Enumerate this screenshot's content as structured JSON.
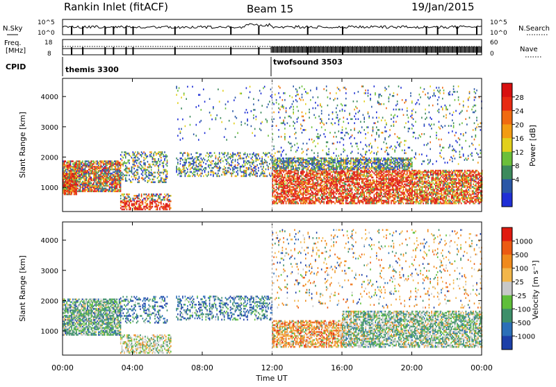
{
  "header": {
    "station": "Rankin Inlet (fitACF)",
    "beam": "Beam 15",
    "date": "19/Jan/2015"
  },
  "top_panels": {
    "nsky_label": "N.Sky",
    "nsearch_label": "N.Search",
    "noise_ticks": [
      "10^5",
      "10^0"
    ],
    "freq_label_1": "Freq.",
    "freq_label_2": "[MHz]",
    "freq_ticks": [
      "18",
      "8"
    ],
    "nave_label": "Nave",
    "nave_ticks": [
      "60",
      "0"
    ],
    "cpid_label": "CPID",
    "cpid_segments": [
      "themis 3300",
      "twofsound 3503"
    ]
  },
  "chart_data": [
    {
      "type": "heatmap",
      "name": "power",
      "xlabel": "",
      "ylabel": "Slant Range [km]",
      "x_ticks": [
        "00:00",
        "04:00",
        "08:00",
        "12:00",
        "16:00",
        "20:00",
        "00:00"
      ],
      "x_range_hours": [
        0,
        24
      ],
      "y_ticks": [
        1000,
        2000,
        3000,
        4000
      ],
      "y_range": [
        200,
        4600
      ],
      "colorbar_label": "Power [dB]",
      "colorbar_ticks": [
        "4",
        "8",
        "12",
        "16",
        "20",
        "24",
        "28"
      ],
      "colorbar_colors": [
        "#1f2fd6",
        "#2a57a6",
        "#3c8a5c",
        "#6bbf3a",
        "#e2d01c",
        "#f39c12",
        "#f06a10",
        "#e82a12",
        "#d81010"
      ],
      "cpid_change_hour": 12
    },
    {
      "type": "heatmap",
      "name": "velocity",
      "xlabel": "Time UT",
      "ylabel": "Slant Range [km]",
      "x_ticks": [
        "00:00",
        "04:00",
        "08:00",
        "12:00",
        "16:00",
        "20:00",
        "00:00"
      ],
      "x_range_hours": [
        0,
        24
      ],
      "y_ticks": [
        1000,
        2000,
        3000,
        4000
      ],
      "y_range": [
        200,
        4600
      ],
      "colorbar_label": "Velocity [m s⁻¹]",
      "colorbar_ticks": [
        "1000",
        "500",
        "100",
        "25",
        "-25",
        "-100",
        "-500",
        "-1000"
      ],
      "colorbar_colors": [
        "#1c3fa8",
        "#2b6fb8",
        "#3d8f6a",
        "#5fbf3a",
        "#c8c8c8",
        "#f2b64a",
        "#f08a1c",
        "#ec5a12",
        "#e01a10"
      ],
      "cpid_change_hour": 12
    }
  ]
}
